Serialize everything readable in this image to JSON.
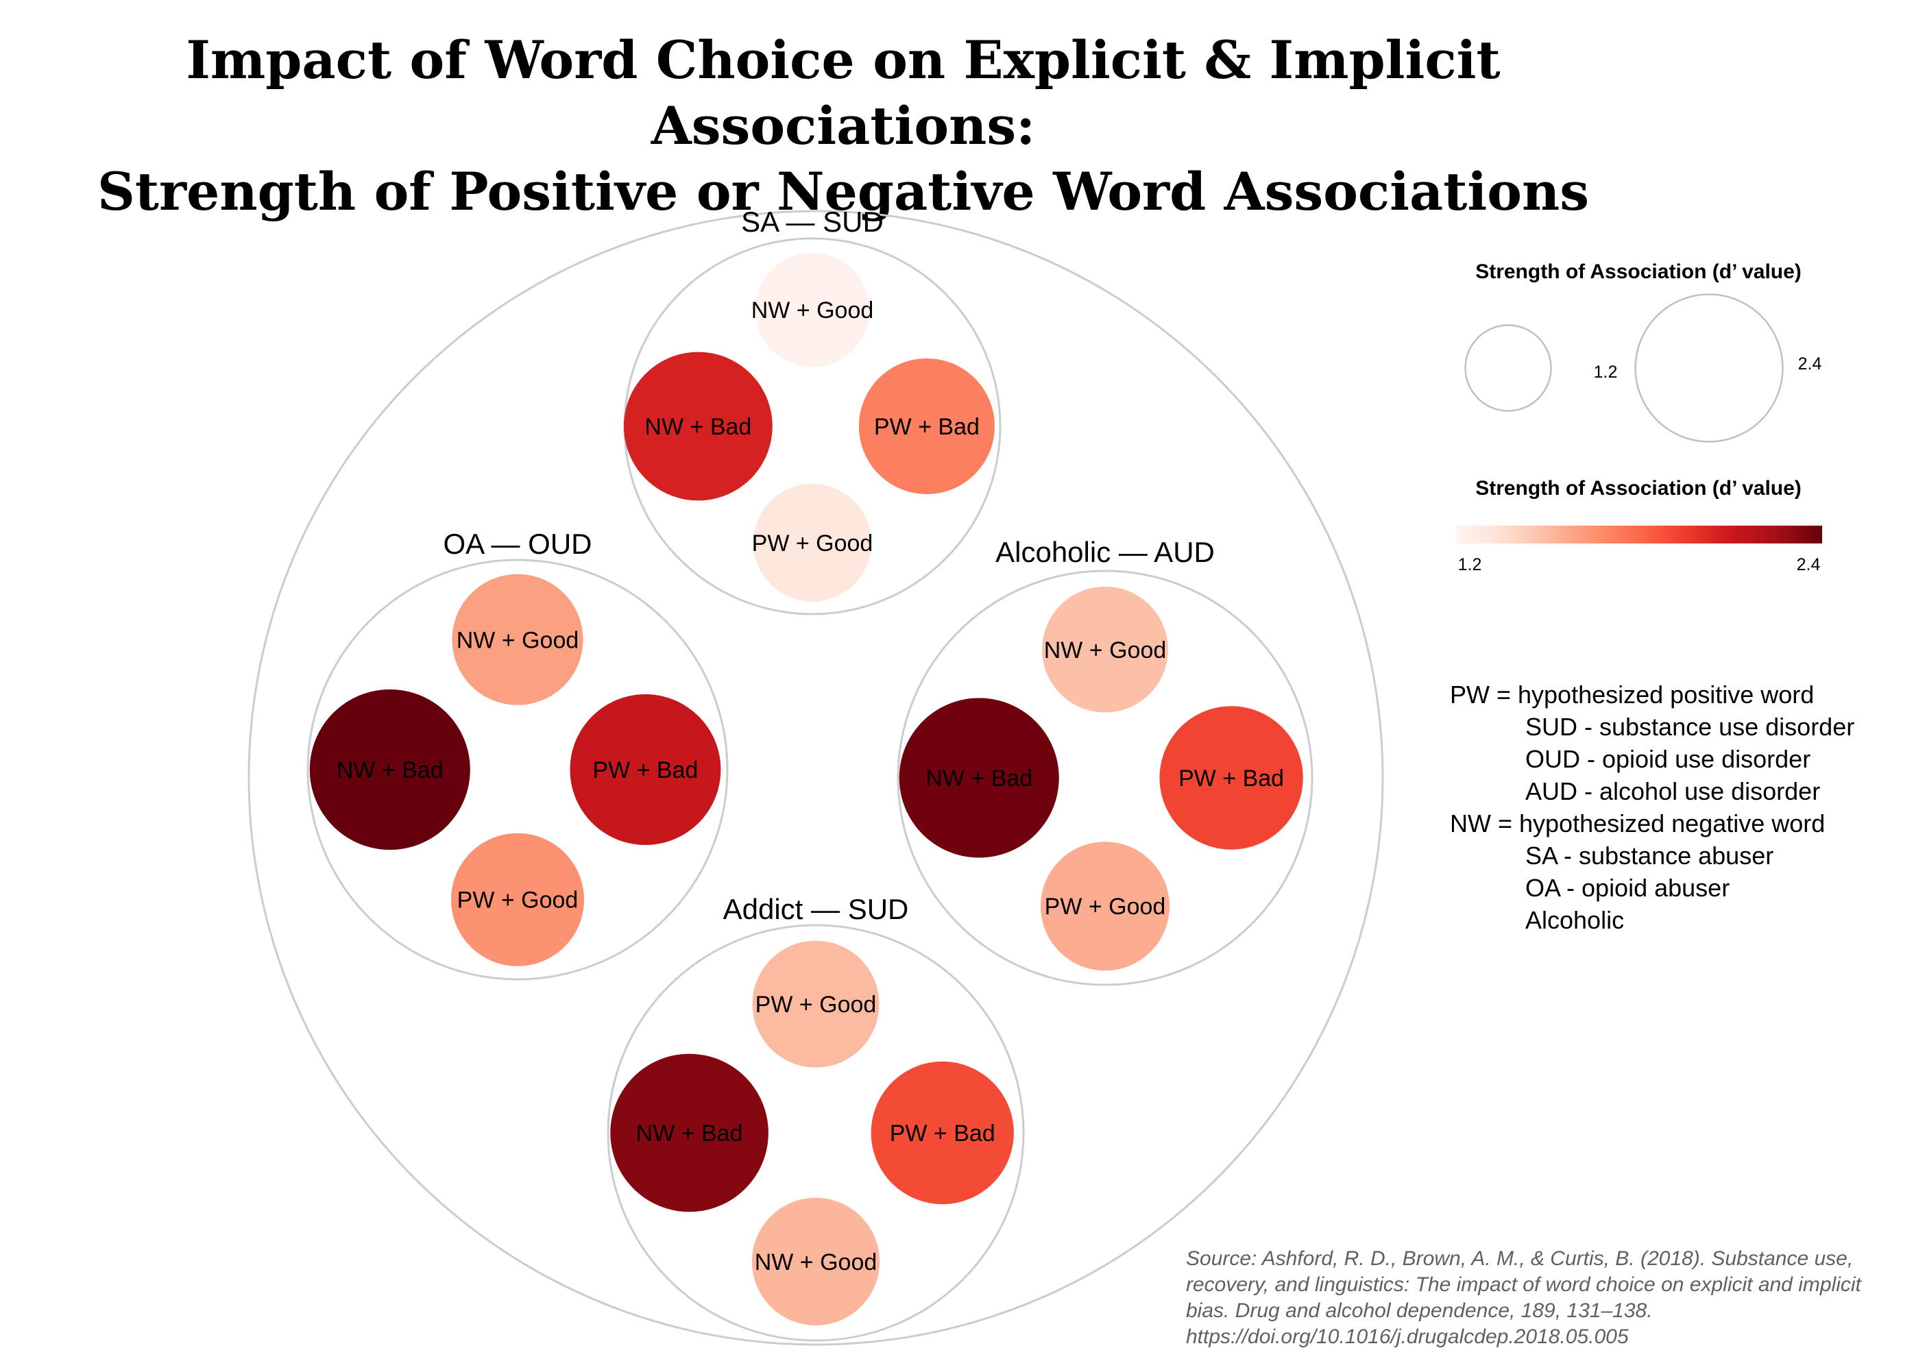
{
  "title": {
    "line1": "Impact of Word Choice on Explicit & Implicit Associations:",
    "line2": "Strength of Positive or Negative Word Associations"
  },
  "legend": {
    "size_title": "Strength of Association (d’ value)",
    "size_min_label": "1.2",
    "size_max_label": "2.4",
    "color_title": "Strength of Association (d’ value)",
    "color_min_label": "1.2",
    "color_max_label": "2.4",
    "colorscale": [
      "#fff5f0",
      "#fee0d2",
      "#fcbba1",
      "#fc9272",
      "#fb6a4a",
      "#ef3b2c",
      "#cb181d",
      "#a50f15",
      "#67000d"
    ],
    "definitions": [
      {
        "text": "PW = hypothesized positive word",
        "indent": false
      },
      {
        "text": "SUD - substance use disorder",
        "indent": true
      },
      {
        "text": "OUD - opioid use disorder",
        "indent": true
      },
      {
        "text": "AUD - alcohol use disorder",
        "indent": true
      },
      {
        "text": "NW = hypothesized negative word",
        "indent": false
      },
      {
        "text": "SA - substance abuser",
        "indent": true
      },
      {
        "text": "OA - opioid abuser",
        "indent": true
      },
      {
        "text": "Alcoholic",
        "indent": true
      }
    ]
  },
  "source": "Source: Ashford, R. D., Brown, A. M., & Curtis, B. (2018). Substance use, recovery, and linguistics: The impact of word choice on explicit and implicit bias. Drug and alcohol dependence, 189, 131–138. https://doi.org/10.1016/j.drugalcdep.2018.05.005",
  "chart_data": {
    "type": "bubble",
    "value_label": "Strength of Association (d’ value)",
    "value_range": [
      1.2,
      2.4
    ],
    "groups": [
      {
        "label": "SA — SUD",
        "position": "top",
        "items": [
          {
            "label": "NW + Good",
            "value": 1.22
          },
          {
            "label": "NW + Bad",
            "value": 2.06
          },
          {
            "label": "PW + Bad",
            "value": 1.72
          },
          {
            "label": "PW + Good",
            "value": 1.3
          }
        ]
      },
      {
        "label": "OA — OUD",
        "position": "left",
        "items": [
          {
            "label": "NW + Good",
            "value": 1.6
          },
          {
            "label": "NW + Bad",
            "value": 2.4
          },
          {
            "label": "PW + Bad",
            "value": 2.12
          },
          {
            "label": "PW + Good",
            "value": 1.65
          }
        ]
      },
      {
        "label": "Alcoholic — AUD",
        "position": "right",
        "items": [
          {
            "label": "NW + Good",
            "value": 1.48
          },
          {
            "label": "NW + Bad",
            "value": 2.38
          },
          {
            "label": "PW + Bad",
            "value": 1.92
          },
          {
            "label": "PW + Good",
            "value": 1.55
          }
        ]
      },
      {
        "label": "Addict — SUD",
        "position": "bottom",
        "items": [
          {
            "label": "PW + Good",
            "value": 1.5
          },
          {
            "label": "NW + Bad",
            "value": 2.33
          },
          {
            "label": "PW + Bad",
            "value": 1.9
          },
          {
            "label": "NW + Good",
            "value": 1.52
          }
        ]
      }
    ]
  }
}
